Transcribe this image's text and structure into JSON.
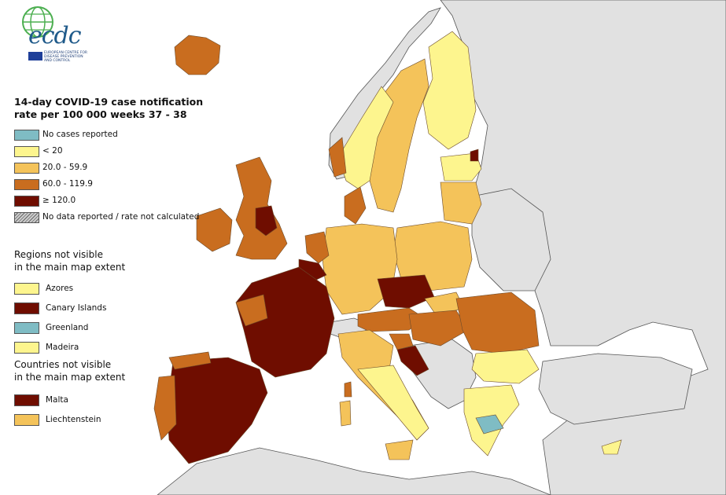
{
  "logo": {
    "text": "ecdc",
    "subtitle": "EUROPEAN CENTRE FOR DISEASE PREVENTION AND CONTROL"
  },
  "legend": {
    "title_line1": "14-day COVID-19 case notification",
    "title_line2": "rate per 100 000 weeks 37 - 38",
    "classes": [
      {
        "label": "No cases reported",
        "color": "#7fbcc4"
      },
      {
        "label": "< 20",
        "color": "#fdf58e"
      },
      {
        "label": "20.0 - 59.9",
        "color": "#f4c35a"
      },
      {
        "label": "60.0 - 119.9",
        "color": "#c96d1f"
      },
      {
        "label": "≥ 120.0",
        "color": "#6f0d00"
      },
      {
        "label": "No data reported / rate not calculated",
        "color": "hatch"
      }
    ]
  },
  "regions_not_visible": {
    "title_line1": "Regions not visible",
    "title_line2": "in the main map extent",
    "items": [
      {
        "label": "Azores",
        "color": "#fdf58e"
      },
      {
        "label": "Canary Islands",
        "color": "#6f0d00"
      },
      {
        "label": "Greenland",
        "color": "#7fbcc4"
      },
      {
        "label": "Madeira",
        "color": "#fdf58e"
      }
    ]
  },
  "countries_not_visible": {
    "title_line1": "Countries not visible",
    "title_line2": "in the main map extent",
    "items": [
      {
        "label": "Malta",
        "color": "#6f0d00"
      },
      {
        "label": "Liechtenstein",
        "color": "#f4c35a"
      }
    ]
  },
  "map_colors": {
    "sea": "#ffffff",
    "non_eu_land": "#e1e1e1",
    "border": "#555555"
  }
}
